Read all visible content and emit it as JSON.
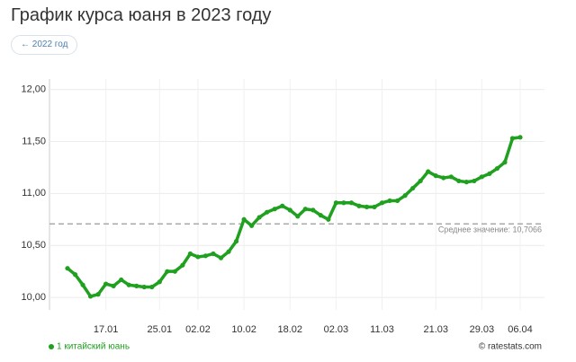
{
  "chart_data": {
    "type": "line",
    "title": "График курса юаня в 2023 году",
    "button": "← 2022 год",
    "credit": "© ratestats.com",
    "categories": [
      null,
      null,
      null,
      null,
      null,
      "17.01",
      null,
      null,
      null,
      null,
      null,
      null,
      "25.01",
      null,
      null,
      null,
      null,
      "02.02",
      null,
      null,
      null,
      null,
      null,
      "10.02",
      null,
      null,
      null,
      null,
      null,
      "18.02",
      null,
      null,
      null,
      null,
      null,
      "02.03",
      null,
      null,
      null,
      null,
      null,
      "11.03",
      null,
      null,
      null,
      null,
      null,
      null,
      "21.03",
      null,
      null,
      null,
      null,
      null,
      "29.03",
      null,
      null,
      null,
      null,
      "06.04"
    ],
    "series": [
      {
        "name": "1 китайский юань",
        "color": "#1fa01f",
        "values": [
          10.28,
          10.22,
          10.12,
          10.01,
          10.03,
          10.13,
          10.11,
          10.17,
          10.12,
          10.11,
          10.1,
          10.1,
          10.15,
          10.25,
          10.25,
          10.31,
          10.42,
          10.39,
          10.4,
          10.42,
          10.38,
          10.44,
          10.54,
          10.75,
          10.69,
          10.77,
          10.82,
          10.85,
          10.88,
          10.84,
          10.78,
          10.85,
          10.84,
          10.79,
          10.75,
          10.91,
          10.91,
          10.91,
          10.88,
          10.87,
          10.87,
          10.91,
          10.93,
          10.93,
          10.98,
          11.05,
          11.12,
          11.21,
          11.17,
          11.15,
          11.16,
          11.12,
          11.11,
          11.12,
          11.16,
          11.19,
          11.24,
          11.3,
          11.53,
          11.54
        ]
      }
    ],
    "average": {
      "value": 10.7066,
      "label": "Среднее значение: 10,7066"
    },
    "ylim": [
      9.88,
      12.1
    ],
    "yticks": [
      {
        "value": 10,
        "label": "10,00"
      },
      {
        "value": 10.5,
        "label": "10,50"
      },
      {
        "value": 11,
        "label": "11,00"
      },
      {
        "value": 11.5,
        "label": "11,50"
      },
      {
        "value": 12,
        "label": "12,00"
      }
    ],
    "grid": true
  }
}
